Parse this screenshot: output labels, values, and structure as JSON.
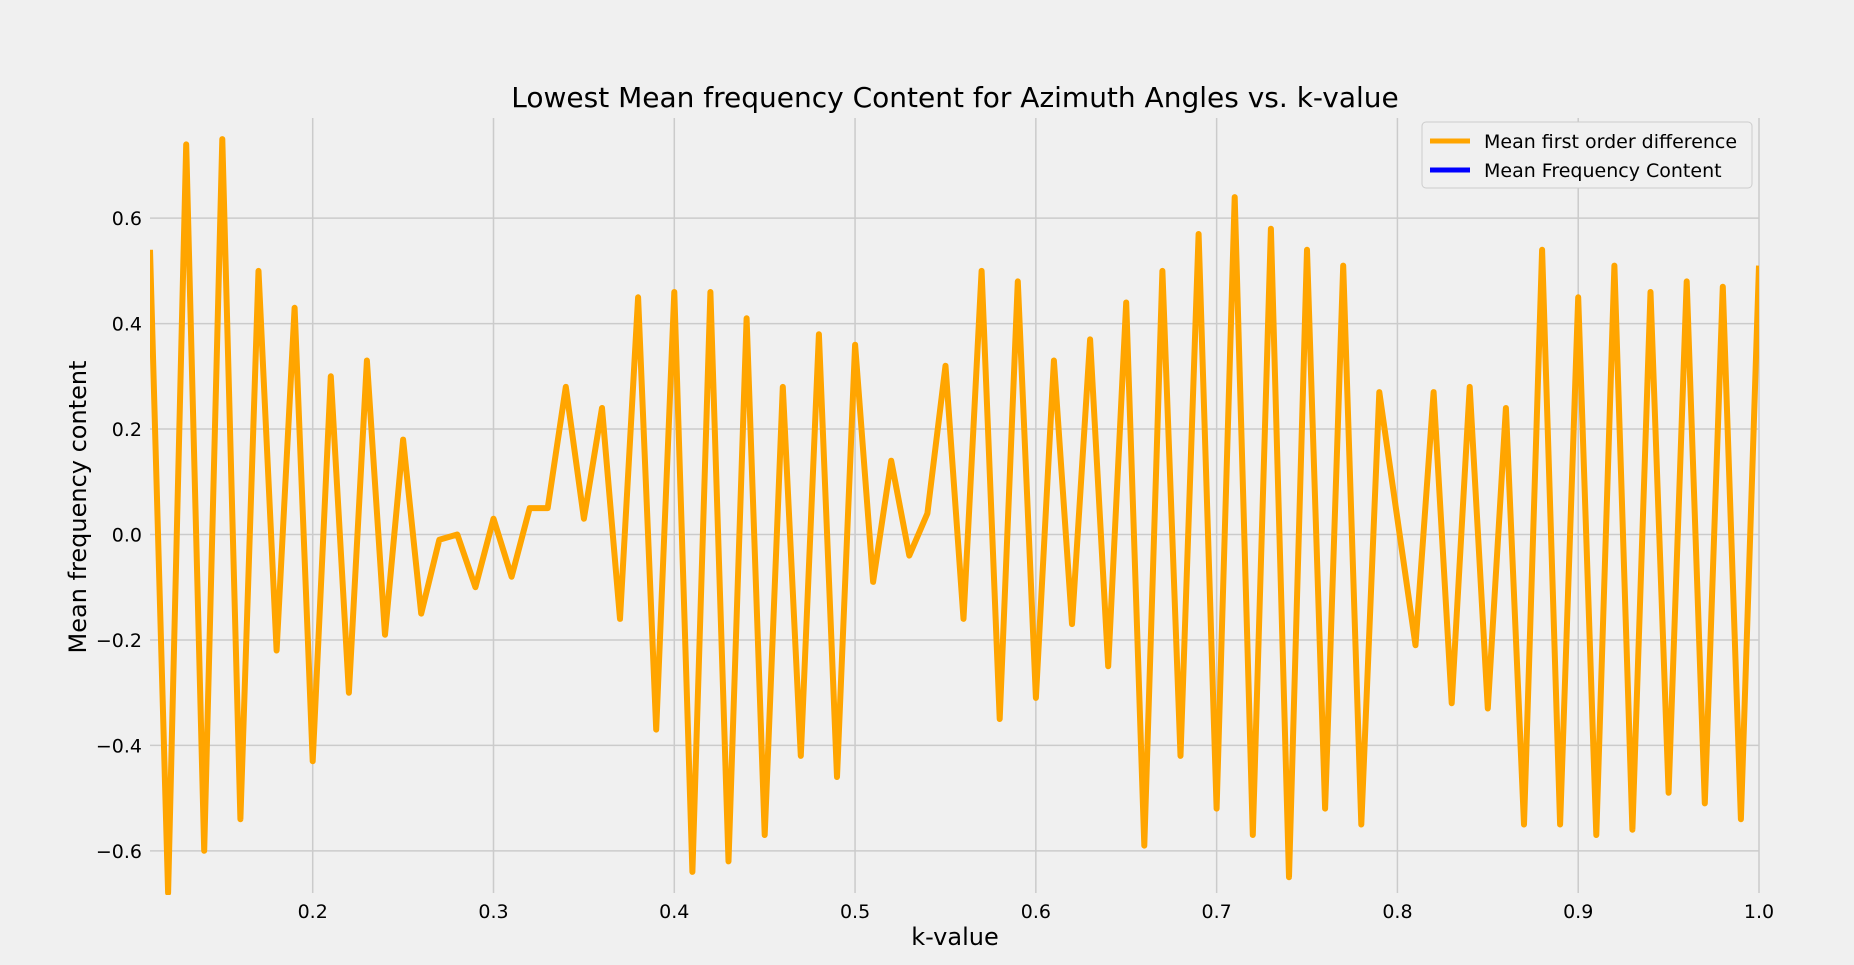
{
  "chart_data": {
    "type": "line",
    "title": "Lowest Mean frequency Content for Azimuth Angles vs. k-value",
    "xlabel": "k-value",
    "ylabel": "Mean frequency content",
    "xlim": [
      0.11,
      1.0
    ],
    "ylim": [
      -0.68,
      0.79
    ],
    "xticks": [
      0.2,
      0.3,
      0.4,
      0.5,
      0.6,
      0.7,
      0.8,
      0.9,
      1.0
    ],
    "xtick_labels": [
      "0.2",
      "0.3",
      "0.4",
      "0.5",
      "0.6",
      "0.7",
      "0.8",
      "0.9",
      "1.0"
    ],
    "yticks": [
      -0.6,
      -0.4,
      -0.2,
      0.0,
      0.2,
      0.4,
      0.6
    ],
    "ytick_labels": [
      "−0.6",
      "−0.4",
      "−0.2",
      "0.0",
      "0.2",
      "0.4",
      "0.6"
    ],
    "grid": true,
    "legend_position": "top-right",
    "series": [
      {
        "name": "Mean first order difference",
        "color": "#FFA500",
        "x": [
          0.11,
          0.12,
          0.13,
          0.14,
          0.15,
          0.16,
          0.17,
          0.18,
          0.19,
          0.2,
          0.21,
          0.22,
          0.23,
          0.24,
          0.25,
          0.26,
          0.27,
          0.28,
          0.29,
          0.3,
          0.31,
          0.32,
          0.33,
          0.34,
          0.35,
          0.36,
          0.37,
          0.38,
          0.39,
          0.4,
          0.41,
          0.42,
          0.43,
          0.44,
          0.45,
          0.46,
          0.47,
          0.48,
          0.49,
          0.5,
          0.51,
          0.52,
          0.53,
          0.54,
          0.55,
          0.56,
          0.57,
          0.58,
          0.59,
          0.6,
          0.61,
          0.62,
          0.63,
          0.64,
          0.65,
          0.66,
          0.67,
          0.68,
          0.69,
          0.7,
          0.71,
          0.72,
          0.73,
          0.74,
          0.75,
          0.76,
          0.77,
          0.78,
          0.79,
          0.8,
          0.81,
          0.82,
          0.83,
          0.84,
          0.85,
          0.86,
          0.87,
          0.88,
          0.89,
          0.9,
          0.91,
          0.92,
          0.93,
          0.94,
          0.95,
          0.96,
          0.97,
          0.98,
          0.99,
          1.0
        ],
        "values": [
          0.54,
          -0.68,
          0.74,
          -0.6,
          0.75,
          -0.54,
          0.5,
          -0.22,
          0.43,
          -0.43,
          0.3,
          -0.3,
          0.33,
          -0.19,
          0.18,
          -0.15,
          -0.01,
          0.0,
          -0.1,
          0.03,
          -0.08,
          0.05,
          0.05,
          0.28,
          0.03,
          0.24,
          -0.16,
          0.45,
          -0.37,
          0.46,
          -0.64,
          0.46,
          -0.62,
          0.41,
          -0.57,
          0.28,
          -0.42,
          0.38,
          -0.46,
          0.36,
          -0.09,
          0.14,
          -0.04,
          0.04,
          0.32,
          -0.16,
          0.5,
          -0.35,
          0.48,
          -0.31,
          0.33,
          -0.17,
          0.37,
          -0.25,
          0.44,
          -0.59,
          0.5,
          -0.42,
          0.57,
          -0.52,
          0.64,
          -0.57,
          0.58,
          -0.65,
          0.54,
          -0.52,
          0.51,
          -0.55,
          0.27,
          0.03,
          -0.21,
          0.27,
          -0.32,
          0.28,
          -0.33,
          0.24,
          -0.55,
          0.54,
          -0.55,
          0.45,
          -0.57,
          0.51,
          -0.56,
          0.46,
          -0.49,
          0.48,
          -0.51,
          0.47,
          -0.54,
          0.51
        ]
      },
      {
        "name": "Mean Frequency Content",
        "color": "#0000FF",
        "values": []
      }
    ]
  }
}
